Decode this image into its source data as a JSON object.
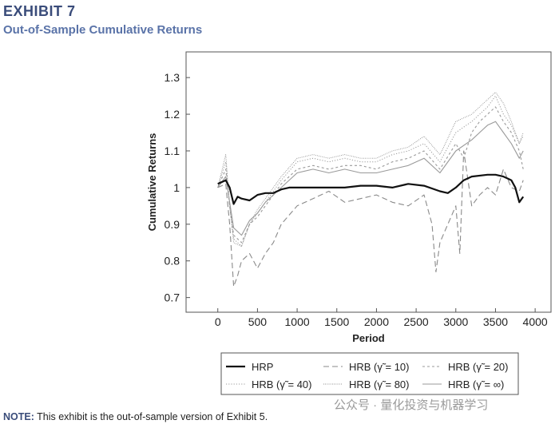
{
  "header": {
    "exhibit": "EXHIBIT 7",
    "title": "Out-of-Sample Cumulative Returns"
  },
  "note": {
    "label": "NOTE:",
    "text": "This exhibit is the out-of-sample version of Exhibit 5."
  },
  "watermark": "公众号 · 量化投资与机器学习",
  "chart_data": {
    "type": "line",
    "title": "Out-of-Sample Cumulative Returns",
    "xlabel": "Period",
    "ylabel": "Cumulative Returns",
    "xlim": [
      -400,
      4200
    ],
    "ylim": [
      0.66,
      1.37
    ],
    "xticks": [
      0,
      500,
      1000,
      1500,
      2000,
      2500,
      3000,
      3500,
      4000
    ],
    "xtick_labels": [
      "0",
      "500",
      "1000",
      "1500",
      "2000",
      "2500",
      "3000",
      "3500",
      "4000"
    ],
    "yticks": [
      0.7,
      0.8,
      0.9,
      1,
      1.1,
      1.2,
      1.3
    ],
    "ytick_labels": [
      "0.7",
      "0.8",
      "0.9",
      "1",
      "1.1",
      "1.2",
      "1.3"
    ],
    "legend_position": "below",
    "series": [
      {
        "name": "HRP",
        "style": "solid-thick",
        "color": "#111111",
        "x": [
          0,
          100,
          150,
          200,
          250,
          300,
          400,
          500,
          600,
          700,
          800,
          900,
          1000,
          1200,
          1400,
          1600,
          1800,
          2000,
          2200,
          2400,
          2600,
          2800,
          2900,
          3000,
          3100,
          3200,
          3400,
          3500,
          3600,
          3700,
          3750,
          3800,
          3850
        ],
        "y": [
          1.01,
          1.02,
          1.0,
          0.955,
          0.975,
          0.97,
          0.965,
          0.98,
          0.985,
          0.985,
          0.995,
          1.0,
          1.0,
          1.0,
          1.0,
          1.0,
          1.005,
          1.005,
          1.0,
          1.01,
          1.005,
          0.99,
          0.985,
          1.0,
          1.02,
          1.03,
          1.035,
          1.035,
          1.03,
          1.02,
          1.0,
          0.96,
          0.975
        ]
      },
      {
        "name": "HRB (γ̃ = 10)",
        "style": "dashed-long",
        "color": "#8a8a8a",
        "x": [
          0,
          100,
          150,
          200,
          250,
          300,
          400,
          500,
          600,
          700,
          800,
          1000,
          1200,
          1400,
          1600,
          1800,
          2000,
          2200,
          2400,
          2600,
          2700,
          2750,
          2800,
          2900,
          3000,
          3050,
          3100,
          3200,
          3300,
          3400,
          3500,
          3600,
          3700,
          3800,
          3850
        ],
        "y": [
          1.0,
          1.01,
          0.9,
          0.73,
          0.76,
          0.8,
          0.82,
          0.78,
          0.82,
          0.85,
          0.9,
          0.95,
          0.97,
          0.99,
          0.96,
          0.97,
          0.98,
          0.96,
          0.95,
          0.98,
          0.9,
          0.77,
          0.85,
          0.9,
          0.95,
          0.82,
          1.1,
          0.95,
          0.98,
          1.0,
          0.98,
          1.05,
          1.0,
          0.99,
          1.02
        ]
      },
      {
        "name": "HRB (γ̃ = 20)",
        "style": "dashed-short",
        "color": "#9a9a9a",
        "x": [
          0,
          100,
          150,
          200,
          300,
          400,
          500,
          600,
          700,
          800,
          1000,
          1200,
          1400,
          1600,
          1800,
          2000,
          2200,
          2400,
          2600,
          2800,
          3000,
          3100,
          3200,
          3300,
          3400,
          3500,
          3600,
          3700,
          3800,
          3850
        ],
        "y": [
          1.0,
          1.05,
          0.95,
          0.87,
          0.85,
          0.9,
          0.92,
          0.95,
          0.98,
          1.01,
          1.05,
          1.06,
          1.05,
          1.06,
          1.06,
          1.05,
          1.07,
          1.08,
          1.1,
          1.05,
          1.12,
          1.08,
          1.15,
          1.18,
          1.2,
          1.22,
          1.18,
          1.15,
          1.1,
          1.05
        ]
      },
      {
        "name": "HRB (γ̃ = 40)",
        "style": "dotted",
        "color": "#9a9a9a",
        "x": [
          0,
          100,
          150,
          200,
          300,
          400,
          500,
          600,
          700,
          800,
          1000,
          1200,
          1400,
          1600,
          1800,
          2000,
          2200,
          2400,
          2600,
          2800,
          3000,
          3200,
          3300,
          3400,
          3500,
          3600,
          3700,
          3800,
          3850
        ],
        "y": [
          1.0,
          1.07,
          0.95,
          0.86,
          0.84,
          0.9,
          0.93,
          0.96,
          0.99,
          1.02,
          1.07,
          1.08,
          1.07,
          1.08,
          1.07,
          1.07,
          1.09,
          1.1,
          1.12,
          1.07,
          1.15,
          1.18,
          1.2,
          1.22,
          1.25,
          1.2,
          1.17,
          1.12,
          1.14
        ]
      },
      {
        "name": "HRB (γ̃ = 80)",
        "style": "dotted-fine",
        "color": "#7a7a7a",
        "x": [
          0,
          100,
          150,
          200,
          300,
          400,
          500,
          600,
          700,
          800,
          1000,
          1200,
          1400,
          1600,
          1800,
          2000,
          2200,
          2400,
          2600,
          2800,
          3000,
          3200,
          3300,
          3400,
          3500,
          3600,
          3700,
          3800,
          3850
        ],
        "y": [
          1.0,
          1.09,
          0.95,
          0.85,
          0.84,
          0.9,
          0.94,
          0.97,
          1.0,
          1.03,
          1.08,
          1.09,
          1.08,
          1.09,
          1.08,
          1.08,
          1.1,
          1.11,
          1.14,
          1.09,
          1.18,
          1.2,
          1.22,
          1.24,
          1.26,
          1.23,
          1.18,
          1.12,
          1.15
        ]
      },
      {
        "name": "HRB (γ̃ = ∞)",
        "style": "solid-thin",
        "color": "#9a9a9a",
        "x": [
          0,
          100,
          150,
          200,
          300,
          400,
          500,
          600,
          700,
          800,
          1000,
          1200,
          1400,
          1600,
          1800,
          2000,
          2200,
          2400,
          2600,
          2800,
          3000,
          3200,
          3300,
          3400,
          3500,
          3600,
          3700,
          3800,
          3850
        ],
        "y": [
          1.0,
          1.03,
          0.96,
          0.89,
          0.87,
          0.91,
          0.93,
          0.96,
          0.98,
          1.0,
          1.04,
          1.05,
          1.04,
          1.05,
          1.04,
          1.04,
          1.05,
          1.06,
          1.08,
          1.04,
          1.1,
          1.13,
          1.15,
          1.17,
          1.18,
          1.15,
          1.12,
          1.08,
          1.1
        ]
      }
    ],
    "legend": {
      "entries": [
        "HRP",
        "HRB (γ̃ = 10)",
        "HRB (γ̃ = 20)",
        "HRB (γ̃ = 40)",
        "HRB (γ̃ = 80)",
        "HRB (γ̃ = ∞)"
      ]
    }
  }
}
